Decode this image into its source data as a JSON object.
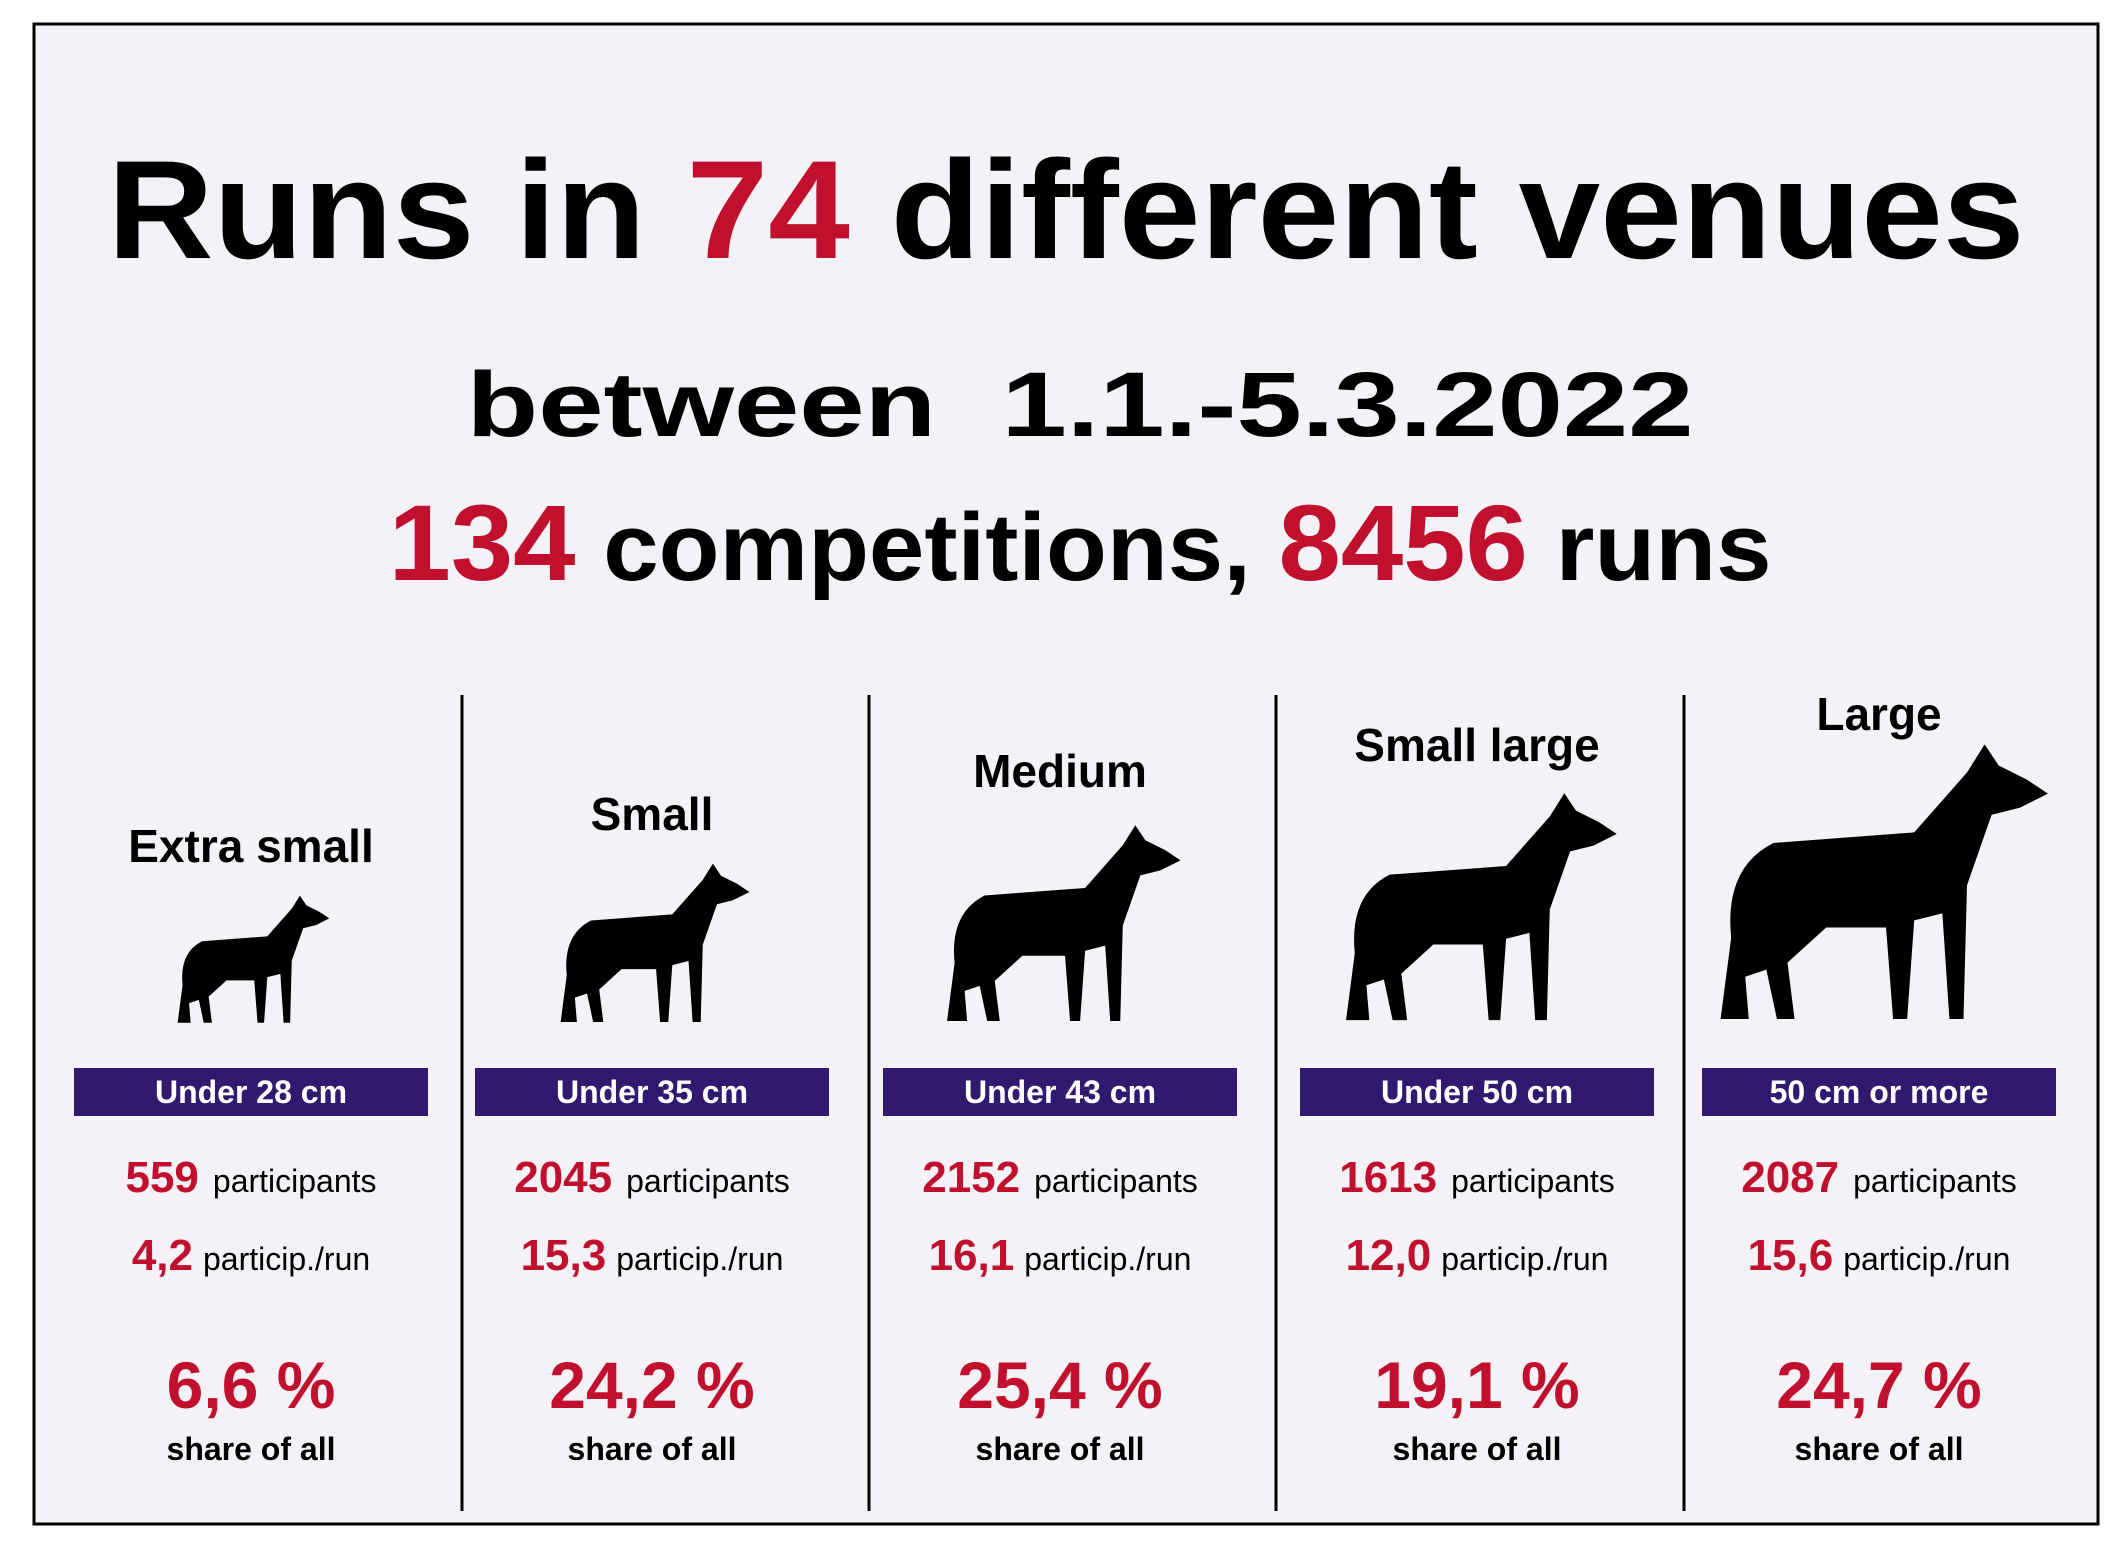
{
  "header": {
    "title": [
      "Runs in",
      "74",
      "different venues"
    ],
    "subtitle": "between  1.1.-5.3.2022",
    "summary": [
      "134",
      "competitions,",
      "8456",
      "runs"
    ]
  },
  "columns": [
    {
      "name": "Extra small",
      "size": "Under 28 cm",
      "participants": "559",
      "participants_label": "participants",
      "per_run": "4,2",
      "per_run_label": "particip./run",
      "share": "6,6 %",
      "share_label": "share of all"
    },
    {
      "name": "Small",
      "size": "Under 35 cm",
      "participants": "2045",
      "participants_label": "participants",
      "per_run": "15,3",
      "per_run_label": "particip./run",
      "share": "24,2 %",
      "share_label": "share of all"
    },
    {
      "name": "Medium",
      "size": "Under 43 cm",
      "participants": "2152",
      "participants_label": "participants",
      "per_run": "16,1",
      "per_run_label": "particip./run",
      "share": "25,4 %",
      "share_label": "share of all"
    },
    {
      "name": "Small large",
      "size": "Under 50 cm",
      "participants": "1613",
      "participants_label": "participants",
      "per_run": "12,0",
      "per_run_label": "particip./run",
      "share": "19,1 %",
      "share_label": "share of all"
    },
    {
      "name": "Large",
      "size": "50 cm or more",
      "participants": "2087",
      "participants_label": "participants",
      "per_run": "15,6",
      "per_run_label": "particip./run",
      "share": "24,7 %",
      "share_label": "share of all"
    }
  ]
}
